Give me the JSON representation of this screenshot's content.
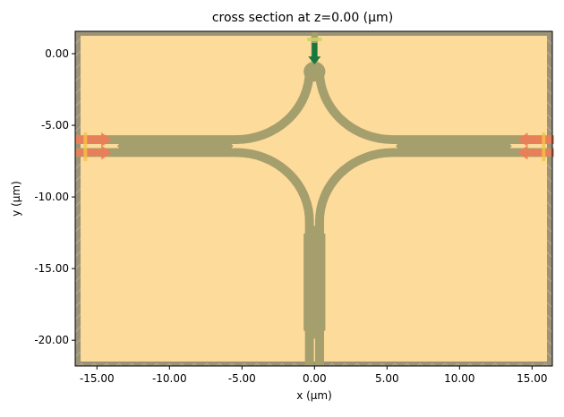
{
  "chart_data": {
    "type": "structure-cross-section",
    "title": "cross section at z=0.00 (μm)",
    "xlabel": "x (μm)",
    "ylabel": "y (μm)",
    "xlim": [
      -16.5,
      16.4
    ],
    "ylim": [
      -21.8,
      1.56
    ],
    "xticks": [
      {
        "value": -15,
        "label": "-15.00"
      },
      {
        "value": -10,
        "label": "-10.00"
      },
      {
        "value": -5,
        "label": "-5.00"
      },
      {
        "value": 0,
        "label": "0.00"
      },
      {
        "value": 5,
        "label": "5.00"
      },
      {
        "value": 10,
        "label": "10.00"
      },
      {
        "value": 15,
        "label": "15.00"
      }
    ],
    "yticks": [
      {
        "value": 0,
        "label": "0.00"
      },
      {
        "value": -5,
        "label": "-5.00"
      },
      {
        "value": -10,
        "label": "-10.00"
      },
      {
        "value": -15,
        "label": "-15.00"
      },
      {
        "value": -20,
        "label": "-20.00"
      }
    ],
    "grid": false,
    "colors": {
      "background_medium": "#fddb9b",
      "waveguide": "#a59f6e",
      "pml_border": "#9b9277",
      "mode_source_arrow": "#ee7b55",
      "mode_source_plane": "#f5c24a",
      "monitor_arrow": "#17773f",
      "monitor_plane": "#c9d36a"
    }
  }
}
